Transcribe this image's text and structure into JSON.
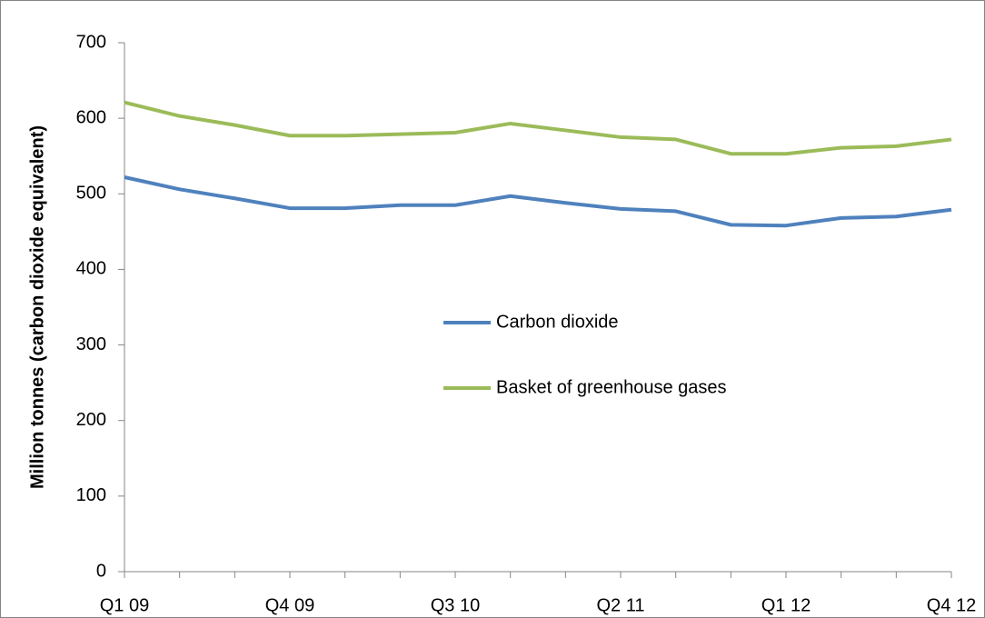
{
  "chart_data": {
    "type": "line",
    "y_label": "Million tonnes (carbon dioxide equivalent)",
    "categories": [
      "Q1 09",
      null,
      null,
      "Q4 09",
      null,
      null,
      "Q3 10",
      null,
      null,
      "Q2 11",
      null,
      null,
      "Q1 12",
      null,
      null,
      "Q4 12"
    ],
    "series": [
      {
        "name": "Carbon dioxide",
        "color": "#4f81bd",
        "values": [
          522,
          506,
          494,
          481,
          481,
          485,
          485,
          497,
          488,
          480,
          477,
          459,
          458,
          468,
          470,
          479
        ]
      },
      {
        "name": "Basket of greenhouse gases",
        "color": "#9bbb59",
        "values": [
          621,
          603,
          591,
          577,
          577,
          579,
          581,
          593,
          584,
          575,
          572,
          553,
          553,
          561,
          563,
          572
        ]
      }
    ],
    "ylim": [
      0,
      700
    ],
    "yticks": [
      0,
      100,
      200,
      300,
      400,
      500,
      600,
      700
    ],
    "grid": false
  }
}
